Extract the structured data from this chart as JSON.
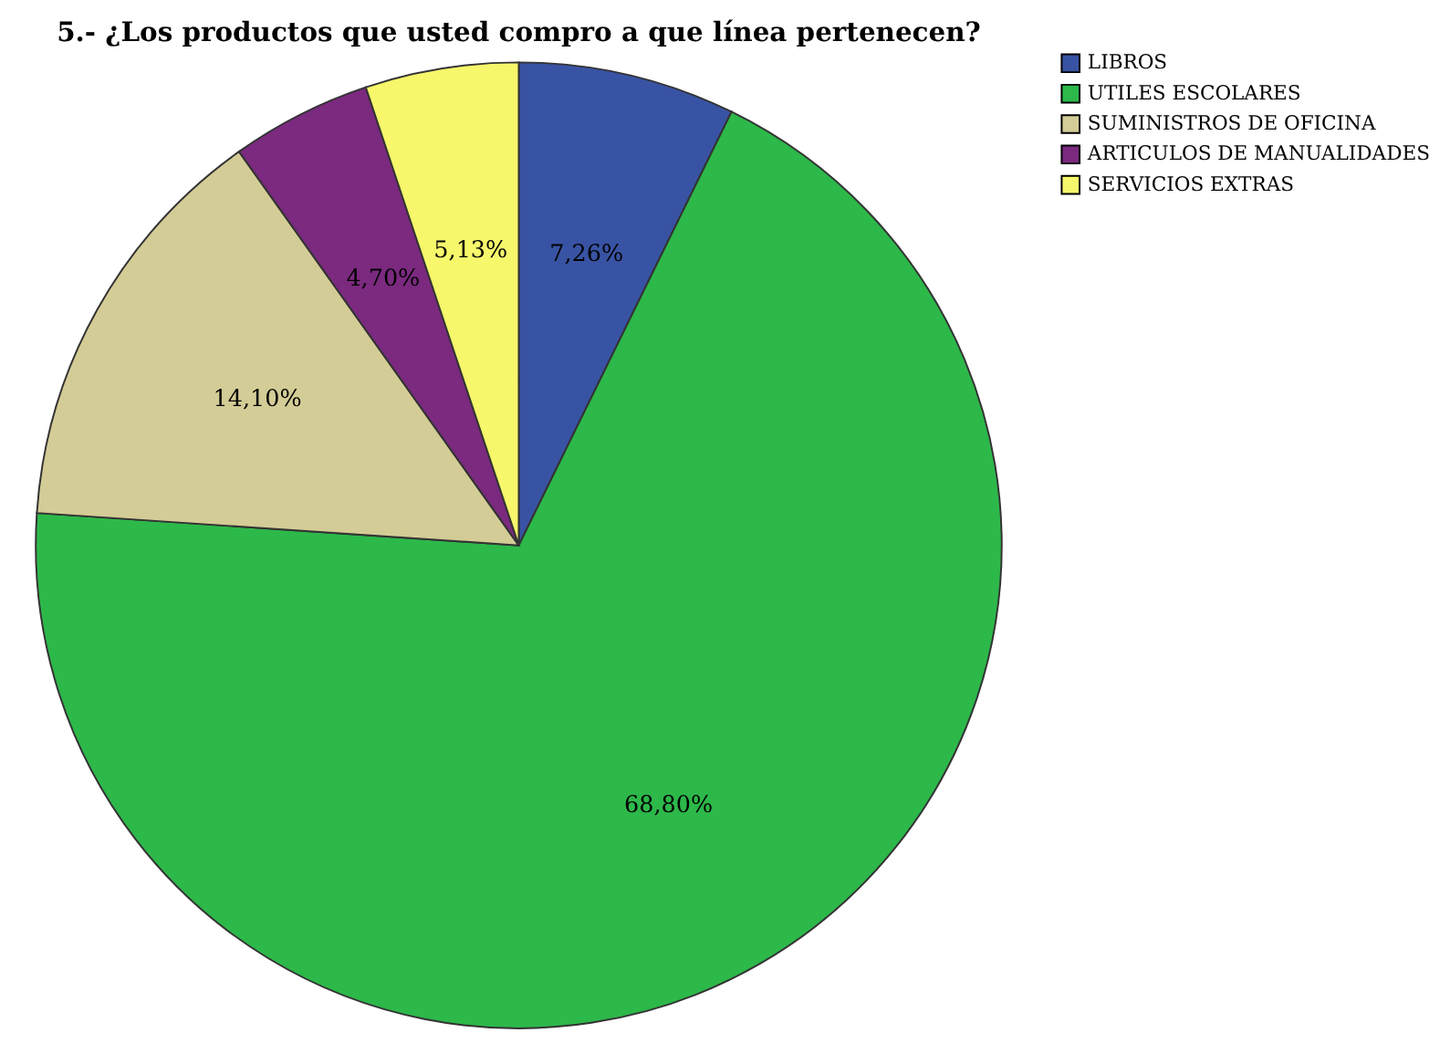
{
  "chart_data": {
    "type": "pie",
    "title": "5.- ¿Los productos que usted compro a que línea pertenecen?",
    "categories": [
      "LIBROS",
      "UTILES ESCOLARES",
      "SUMINISTROS DE OFICINA",
      "ARTICULOS DE MANUALIDADES",
      "SERVICIOS EXTRAS"
    ],
    "values": [
      7.26,
      68.8,
      14.1,
      4.7,
      5.13
    ],
    "value_labels": [
      "7,26%",
      "68,80%",
      "14,10%",
      "4,70%",
      "5,13%"
    ],
    "colors": [
      "#3953a4",
      "#2db84a",
      "#d4cc96",
      "#7b2a7f",
      "#f7f76b"
    ],
    "legend": "top right"
  }
}
